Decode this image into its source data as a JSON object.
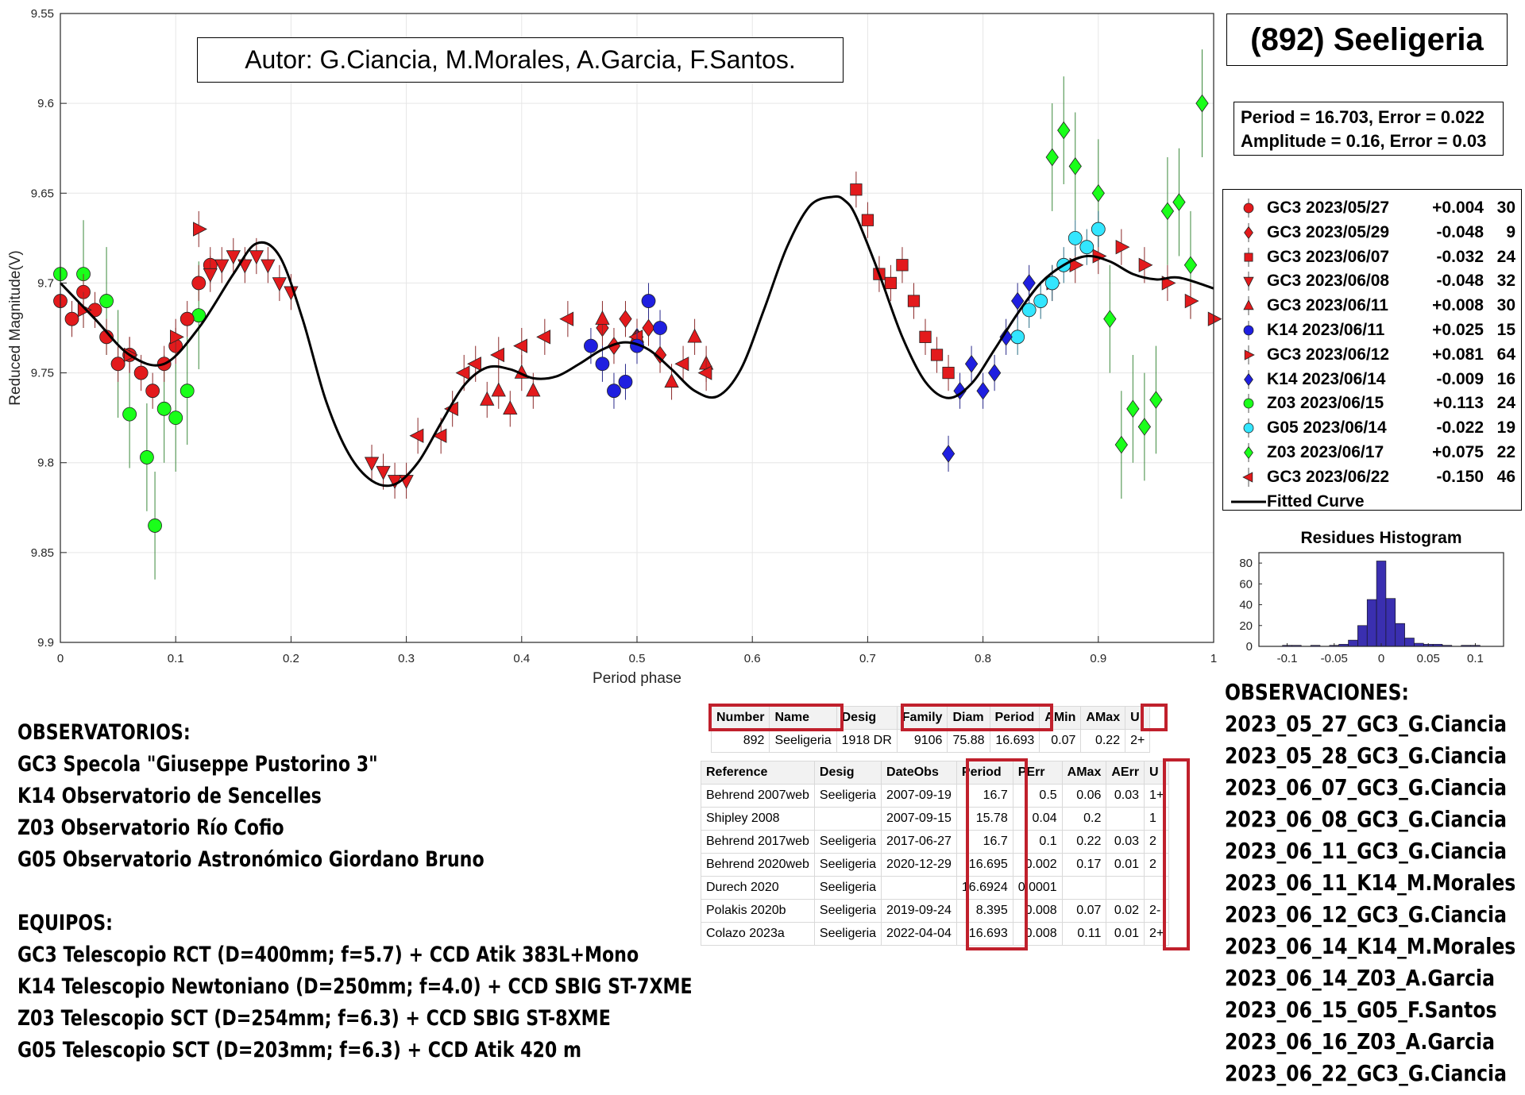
{
  "author": "Autor: G.Ciancia, M.Morales, A.Garcia, F.Santos.",
  "title": "(892) Seeligeria",
  "period_box": {
    "line1": "Period =  16.703, Error = 0.022",
    "line2": "Amplitude = 0.16, Error = 0.03"
  },
  "colors": {
    "red": "#e31a1c",
    "blue": "#1f1fe0",
    "green": "#1aff1a",
    "cyan": "#33e6ff",
    "curve": "#000000",
    "hist": "#3a2fb0",
    "annot_red": "#c0202c"
  },
  "chart_data": [
    {
      "type": "scatter",
      "xlabel": "Period phase",
      "ylabel": "Reduced Magnitude(V)",
      "xlim": [
        0,
        1
      ],
      "ylim": [
        9.9,
        9.55
      ],
      "y_reversed": true,
      "xticks": [
        0,
        0.1,
        0.2,
        0.3,
        0.4,
        0.5,
        0.6,
        0.7,
        0.8,
        0.9,
        1
      ],
      "xtick_labels": [
        "0",
        "0.1",
        "0.2",
        "0.3",
        "0.4",
        "0.5",
        "0.6",
        "0.7",
        "0.8",
        "0.9",
        "1"
      ],
      "yticks": [
        9.55,
        9.6,
        9.65,
        9.7,
        9.75,
        9.8,
        9.85,
        9.9
      ],
      "ytick_labels": [
        "9.55",
        "9.6",
        "9.65",
        "9.7",
        "9.75",
        "9.8",
        "9.85",
        "9.9"
      ],
      "grid": true,
      "legend_position": "right",
      "series": [
        {
          "name": "GC3 2023/05/27",
          "offset": "+0.004",
          "count": "30",
          "marker": "circle",
          "color": "red",
          "x": [
            0.0,
            0.01,
            0.02,
            0.03,
            0.04,
            0.05,
            0.06,
            0.07,
            0.08,
            0.09,
            0.1,
            0.11,
            0.12,
            0.13
          ],
          "y": [
            9.71,
            9.72,
            9.705,
            9.715,
            9.73,
            9.745,
            9.74,
            9.75,
            9.76,
            9.745,
            9.735,
            9.72,
            9.7,
            9.69
          ]
        },
        {
          "name": "GC3 2023/05/29",
          "offset": "-0.048",
          "count": "9",
          "marker": "diamond",
          "color": "red",
          "x": [
            0.47,
            0.48,
            0.49,
            0.5,
            0.51,
            0.52
          ],
          "y": [
            9.725,
            9.735,
            9.72,
            9.73,
            9.725,
            9.74
          ]
        },
        {
          "name": "GC3 2023/06/07",
          "offset": "-0.032",
          "count": "24",
          "marker": "square",
          "color": "red",
          "x": [
            0.69,
            0.7,
            0.71,
            0.72,
            0.73,
            0.74,
            0.75,
            0.76,
            0.77
          ],
          "y": [
            9.648,
            9.665,
            9.695,
            9.7,
            9.69,
            9.71,
            9.73,
            9.74,
            9.75
          ]
        },
        {
          "name": "GC3 2023/06/08",
          "offset": "-0.048",
          "count": "32",
          "marker": "triangle-down",
          "color": "red",
          "x": [
            0.13,
            0.14,
            0.15,
            0.16,
            0.17,
            0.18,
            0.19,
            0.2,
            0.27,
            0.28,
            0.29,
            0.3
          ],
          "y": [
            9.695,
            9.69,
            9.685,
            9.69,
            9.685,
            9.69,
            9.7,
            9.705,
            9.8,
            9.805,
            9.81,
            9.81
          ]
        },
        {
          "name": "GC3 2023/06/11",
          "offset": "+0.008",
          "count": "30",
          "marker": "triangle-up",
          "color": "red",
          "x": [
            0.37,
            0.38,
            0.39,
            0.4,
            0.41,
            0.47,
            0.5,
            0.53,
            0.55,
            0.56
          ],
          "y": [
            9.765,
            9.76,
            9.77,
            9.75,
            9.76,
            9.72,
            9.73,
            9.755,
            9.73,
            9.745
          ]
        },
        {
          "name": "K14 2023/06/11",
          "offset": "+0.025",
          "count": "15",
          "marker": "circle",
          "color": "blue",
          "x": [
            0.46,
            0.47,
            0.48,
            0.49,
            0.5,
            0.51,
            0.52
          ],
          "y": [
            9.735,
            9.745,
            9.76,
            9.755,
            9.735,
            9.71,
            9.725
          ]
        },
        {
          "name": "GC3 2023/06/12",
          "offset": "+0.081",
          "count": "64",
          "marker": "triangle-right",
          "color": "red",
          "x": [
            0.02,
            0.06,
            0.1,
            0.12,
            0.86,
            0.88,
            0.9,
            0.92,
            0.94,
            0.96,
            0.98,
            1.0
          ],
          "y": [
            9.715,
            9.74,
            9.73,
            9.67,
            9.7,
            9.69,
            9.685,
            9.68,
            9.69,
            9.7,
            9.71,
            9.72
          ]
        },
        {
          "name": "K14 2023/06/14",
          "offset": "-0.009",
          "count": "16",
          "marker": "diamond",
          "color": "blue",
          "x": [
            0.77,
            0.78,
            0.79,
            0.8,
            0.81,
            0.82,
            0.83,
            0.84
          ],
          "y": [
            9.795,
            9.76,
            9.745,
            9.76,
            9.75,
            9.73,
            9.71,
            9.7
          ]
        },
        {
          "name": "Z03 2023/06/15",
          "offset": "+0.113",
          "count": "24",
          "marker": "circle",
          "color": "green",
          "x": [
            0.0,
            0.02,
            0.04,
            0.05,
            0.06,
            0.075,
            0.082,
            0.09,
            0.1,
            0.11,
            0.12
          ],
          "y": [
            9.695,
            9.695,
            9.71,
            9.745,
            9.773,
            9.797,
            9.835,
            9.77,
            9.775,
            9.76,
            9.718
          ]
        },
        {
          "name": "G05 2023/06/14",
          "offset": "-0.022",
          "count": "19",
          "marker": "circle",
          "color": "cyan",
          "x": [
            0.83,
            0.84,
            0.85,
            0.86,
            0.87,
            0.88,
            0.89,
            0.9
          ],
          "y": [
            9.73,
            9.715,
            9.71,
            9.7,
            9.69,
            9.675,
            9.68,
            9.67
          ]
        },
        {
          "name": "Z03 2023/06/17",
          "offset": "+0.075",
          "count": "22",
          "marker": "diamond",
          "color": "green",
          "x": [
            0.86,
            0.87,
            0.88,
            0.9,
            0.91,
            0.92,
            0.93,
            0.94,
            0.95,
            0.96,
            0.97,
            0.98,
            0.99
          ],
          "y": [
            9.63,
            9.615,
            9.635,
            9.65,
            9.72,
            9.79,
            9.77,
            9.78,
            9.765,
            9.66,
            9.655,
            9.69,
            9.6
          ]
        },
        {
          "name": "GC3 2023/06/22",
          "offset": "-0.150",
          "count": "46",
          "marker": "triangle-left",
          "color": "red",
          "x": [
            0.31,
            0.33,
            0.34,
            0.35,
            0.36,
            0.38,
            0.4,
            0.42,
            0.44,
            0.5,
            0.54,
            0.56
          ],
          "y": [
            9.785,
            9.785,
            9.77,
            9.75,
            9.745,
            9.74,
            9.735,
            9.73,
            9.72,
            9.73,
            9.745,
            9.75
          ]
        },
        {
          "name": "Fitted Curve",
          "offset": "",
          "count": "",
          "marker": "line",
          "color": "curve",
          "x": [
            0.0,
            0.03,
            0.06,
            0.09,
            0.12,
            0.15,
            0.17,
            0.19,
            0.21,
            0.23,
            0.25,
            0.27,
            0.29,
            0.31,
            0.33,
            0.35,
            0.37,
            0.39,
            0.41,
            0.43,
            0.45,
            0.47,
            0.49,
            0.51,
            0.53,
            0.55,
            0.57,
            0.59,
            0.61,
            0.63,
            0.65,
            0.67,
            0.68,
            0.69,
            0.71,
            0.73,
            0.75,
            0.77,
            0.79,
            0.81,
            0.83,
            0.85,
            0.87,
            0.89,
            0.91,
            0.93,
            0.95,
            0.97,
            1.0
          ],
          "y": [
            9.7,
            9.72,
            9.74,
            9.745,
            9.725,
            9.695,
            9.678,
            9.685,
            9.72,
            9.765,
            9.795,
            9.81,
            9.812,
            9.8,
            9.778,
            9.757,
            9.747,
            9.748,
            9.753,
            9.752,
            9.745,
            9.737,
            9.733,
            9.737,
            9.748,
            9.76,
            9.763,
            9.748,
            9.715,
            9.68,
            9.657,
            9.652,
            9.654,
            9.663,
            9.695,
            9.73,
            9.755,
            9.764,
            9.756,
            9.737,
            9.717,
            9.7,
            9.69,
            9.685,
            9.688,
            9.695,
            9.698,
            9.697,
            9.703
          ]
        }
      ]
    },
    {
      "type": "bar",
      "title": "Residues Histogram",
      "xlim": [
        -0.13,
        0.13
      ],
      "ylim": [
        0,
        90
      ],
      "xticks": [
        -0.1,
        -0.05,
        0,
        0.05,
        0.1
      ],
      "xtick_labels": [
        "-0.1",
        "-0.05",
        "0",
        "0.05",
        "0.1"
      ],
      "yticks": [
        0,
        20,
        40,
        60,
        80
      ],
      "ytick_labels": [
        "0",
        "20",
        "40",
        "60",
        "80"
      ],
      "bin_centers": [
        -0.1,
        -0.09,
        -0.08,
        -0.07,
        -0.06,
        -0.05,
        -0.04,
        -0.03,
        -0.02,
        -0.01,
        0.0,
        0.01,
        0.02,
        0.03,
        0.04,
        0.05,
        0.06,
        0.07,
        0.08,
        0.09,
        0.1
      ],
      "values": [
        1,
        1,
        0,
        1,
        0,
        1,
        2,
        6,
        20,
        45,
        82,
        46,
        22,
        8,
        3,
        2,
        2,
        1,
        0,
        1,
        1
      ]
    }
  ],
  "observatorios": {
    "heading": "OBSERVATORIOS:",
    "lines": [
      "GC3 Specola \"Giuseppe Pustorino 3\"",
      "K14 Observatorio de Sencelles",
      "Z03 Observatorio Río Cofio",
      "G05 Observatorio Astronómico Giordano Bruno"
    ]
  },
  "equipos": {
    "heading": "EQUIPOS:",
    "lines": [
      "GC3 Telescopio RCT (D=400mm; f=5.7) + CCD Atik 383L+Mono",
      "K14 Telescopio Newtoniano (D=250mm; f=4.0) + CCD SBIG ST-7XME",
      "Z03 Telescopio SCT (D=254mm; f=6.3) + CCD SBIG ST-8XME",
      "G05 Telescopio SCT (D=203mm; f=6.3) + CCD Atik 420 m"
    ]
  },
  "observaciones": {
    "heading": "OBSERVACIONES:",
    "lines": [
      "2023_05_27_GC3_G.Ciancia",
      "2023_05_28_GC3_G.Ciancia",
      "2023_06_07_GC3_G.Ciancia",
      "2023_06_08_GC3_G.Ciancia",
      "2023_06_11_GC3_G.Ciancia",
      "2023_06_11_K14_M.Morales",
      "2023_06_12_GC3_G.Ciancia",
      "2023_06_14_K14_M.Morales",
      "2023_06_14_Z03_A.Garcia",
      "2023_06_15_G05_F.Santos",
      "2023_06_16_Z03_A.Garcia",
      "2023_06_22_GC3_G.Ciancia"
    ]
  },
  "lcdb_summary": {
    "headers": [
      "Number",
      "Name",
      "Desig",
      "Family",
      "Diam",
      "Period",
      "AMin",
      "AMax",
      "U"
    ],
    "row": [
      "892",
      "Seeligeria",
      "1918 DR",
      "9106",
      "75.88",
      "16.693",
      "0.07",
      "0.22",
      "2+"
    ]
  },
  "lcdb_refs": {
    "headers": [
      "Reference",
      "Desig",
      "DateObs",
      "Period",
      "PErr",
      "AMax",
      "AErr",
      "U"
    ],
    "rows": [
      [
        "Behrend 2007web",
        "Seeligeria",
        "2007-09-19",
        "16.7",
        "0.5",
        "0.06",
        "0.03",
        "1+"
      ],
      [
        "Shipley 2008",
        "",
        "2007-09-15",
        "15.78",
        "0.04",
        "0.2",
        "",
        "1"
      ],
      [
        "Behrend 2017web",
        "Seeligeria",
        "2017-06-27",
        "16.7",
        "0.1",
        "0.22",
        "0.03",
        "2"
      ],
      [
        "Behrend 2020web",
        "Seeligeria",
        "2020-12-29",
        "16.695",
        "0.002",
        "0.17",
        "0.01",
        "2"
      ],
      [
        "Durech 2020",
        "Seeligeria",
        "",
        "16.6924",
        "0.0001",
        "",
        "",
        ""
      ],
      [
        "Polakis 2020b",
        "Seeligeria",
        "2019-09-24",
        "8.395",
        "0.008",
        "0.07",
        "0.02",
        "2-"
      ],
      [
        "Colazo 2023a",
        "Seeligeria",
        "2022-04-04",
        "16.693",
        "0.008",
        "0.11",
        "0.01",
        "2+"
      ]
    ]
  }
}
